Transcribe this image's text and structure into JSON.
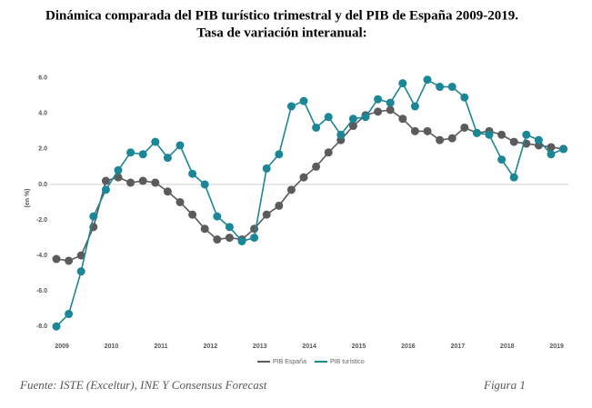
{
  "chart_data": {
    "type": "line",
    "title": "Dinámica comparada del PIB turístico trimestral y del PIB de España 2009-2019.",
    "subtitle": "Tasa de variación interanual:",
    "y_label": "(en %)",
    "categories": [
      "2009",
      null,
      null,
      null,
      "2010",
      null,
      null,
      null,
      "2011",
      null,
      null,
      null,
      "2012",
      null,
      null,
      null,
      "2013",
      null,
      null,
      null,
      "2014",
      null,
      null,
      null,
      "2015",
      null,
      null,
      null,
      "2016",
      null,
      null,
      null,
      "2017",
      null,
      null,
      null,
      "2018",
      null,
      null,
      null,
      "2019",
      null
    ],
    "series": [
      {
        "name": "PIB España",
        "color": "#5b5a5c",
        "values": [
          -4.2,
          -4.3,
          -4.0,
          -2.4,
          0.2,
          0.4,
          0.1,
          0.2,
          0.1,
          -0.4,
          -1.0,
          -1.7,
          -2.5,
          -3.1,
          -3.0,
          -3.1,
          -2.5,
          -1.7,
          -1.2,
          -0.3,
          0.4,
          1.0,
          1.8,
          2.5,
          3.3,
          3.9,
          4.1,
          4.2,
          3.7,
          3.0,
          3.0,
          2.5,
          2.6,
          3.2,
          2.9,
          3.0,
          2.8,
          2.4,
          2.3,
          2.2,
          2.1,
          2.0
        ]
      },
      {
        "name": "PIB turístico",
        "color": "#1a8696",
        "values": [
          -8.0,
          -7.3,
          -4.9,
          -1.8,
          -0.3,
          0.8,
          1.8,
          1.7,
          2.4,
          1.5,
          2.2,
          0.6,
          0.0,
          -1.8,
          -2.4,
          -3.2,
          -3.0,
          0.9,
          1.7,
          4.4,
          4.7,
          3.2,
          3.8,
          2.8,
          3.7,
          3.8,
          4.8,
          4.6,
          5.7,
          4.4,
          5.9,
          5.5,
          5.5,
          4.9,
          2.9,
          2.8,
          1.4,
          0.4,
          2.8,
          2.5,
          1.7,
          2.0
        ]
      }
    ],
    "ylim": [
      -8.5,
      6.5
    ],
    "yticks": [
      {
        "value": 6,
        "label": "6.0"
      },
      {
        "value": 4,
        "label": "4.0"
      },
      {
        "value": 2,
        "label": "2.0"
      },
      {
        "value": 0,
        "label": "0.0"
      },
      {
        "value": -2,
        "label": "-2.0"
      },
      {
        "value": -4,
        "label": "-4.0"
      },
      {
        "value": -6,
        "label": "-6.0"
      },
      {
        "value": -8,
        "label": "-8.0"
      }
    ],
    "grid": false,
    "legend": "bottom"
  },
  "footer": {
    "source": "Fuente: ISTE (Exceltur), INE Y Consensus Forecast",
    "figure": "Figura 1"
  }
}
